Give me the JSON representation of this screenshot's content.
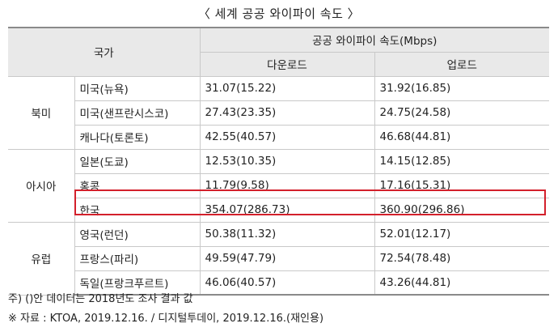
{
  "title": "〈 세계 공공 와이파이 속도 〉",
  "table": {
    "header": {
      "country": "국가",
      "speed": "공공 와이파이 속도(Mbps)",
      "download": "다운로드",
      "upload": "업로드"
    },
    "regions": [
      {
        "name": "북미",
        "rows": [
          {
            "city": "미국(뉴욕)",
            "download": "31.07(15.22)",
            "upload": "31.92(16.85)"
          },
          {
            "city": "미국(샌프란시스코)",
            "download": "27.43(23.35)",
            "upload": "24.75(24.58)"
          },
          {
            "city": "캐나다(토론토)",
            "download": "42.55(40.57)",
            "upload": "46.68(44.81)"
          }
        ]
      },
      {
        "name": "아시아",
        "rows": [
          {
            "city": "일본(도쿄)",
            "download": "12.53(10.35)",
            "upload": "14.15(12.85)"
          },
          {
            "city": "홍콩",
            "download": "11.79(9.58)",
            "upload": "17.16(15.31)"
          },
          {
            "city": "한국",
            "download": "354.07(286.73)",
            "upload": "360.90(296.86)"
          }
        ]
      },
      {
        "name": "유럽",
        "rows": [
          {
            "city": "영국(런던)",
            "download": "50.38(11.32)",
            "upload": "52.01(12.17)"
          },
          {
            "city": "프랑스(파리)",
            "download": "49.59(47.79)",
            "upload": "72.54(78.48)"
          },
          {
            "city": "독일(프랑크푸르트)",
            "download": "46.06(40.57)",
            "upload": "43.26(44.81)"
          }
        ]
      }
    ]
  },
  "notes": {
    "note1": "주) ()안 데이터는 2018년도 조사 결과 값",
    "note2": "※ 자료 : KTOA, 2019.12.16. / 디지털투데이, 2019.12.16.(재인용)"
  },
  "colors": {
    "highlight": "#d3202b",
    "header_bg": "#e9e9e9"
  }
}
